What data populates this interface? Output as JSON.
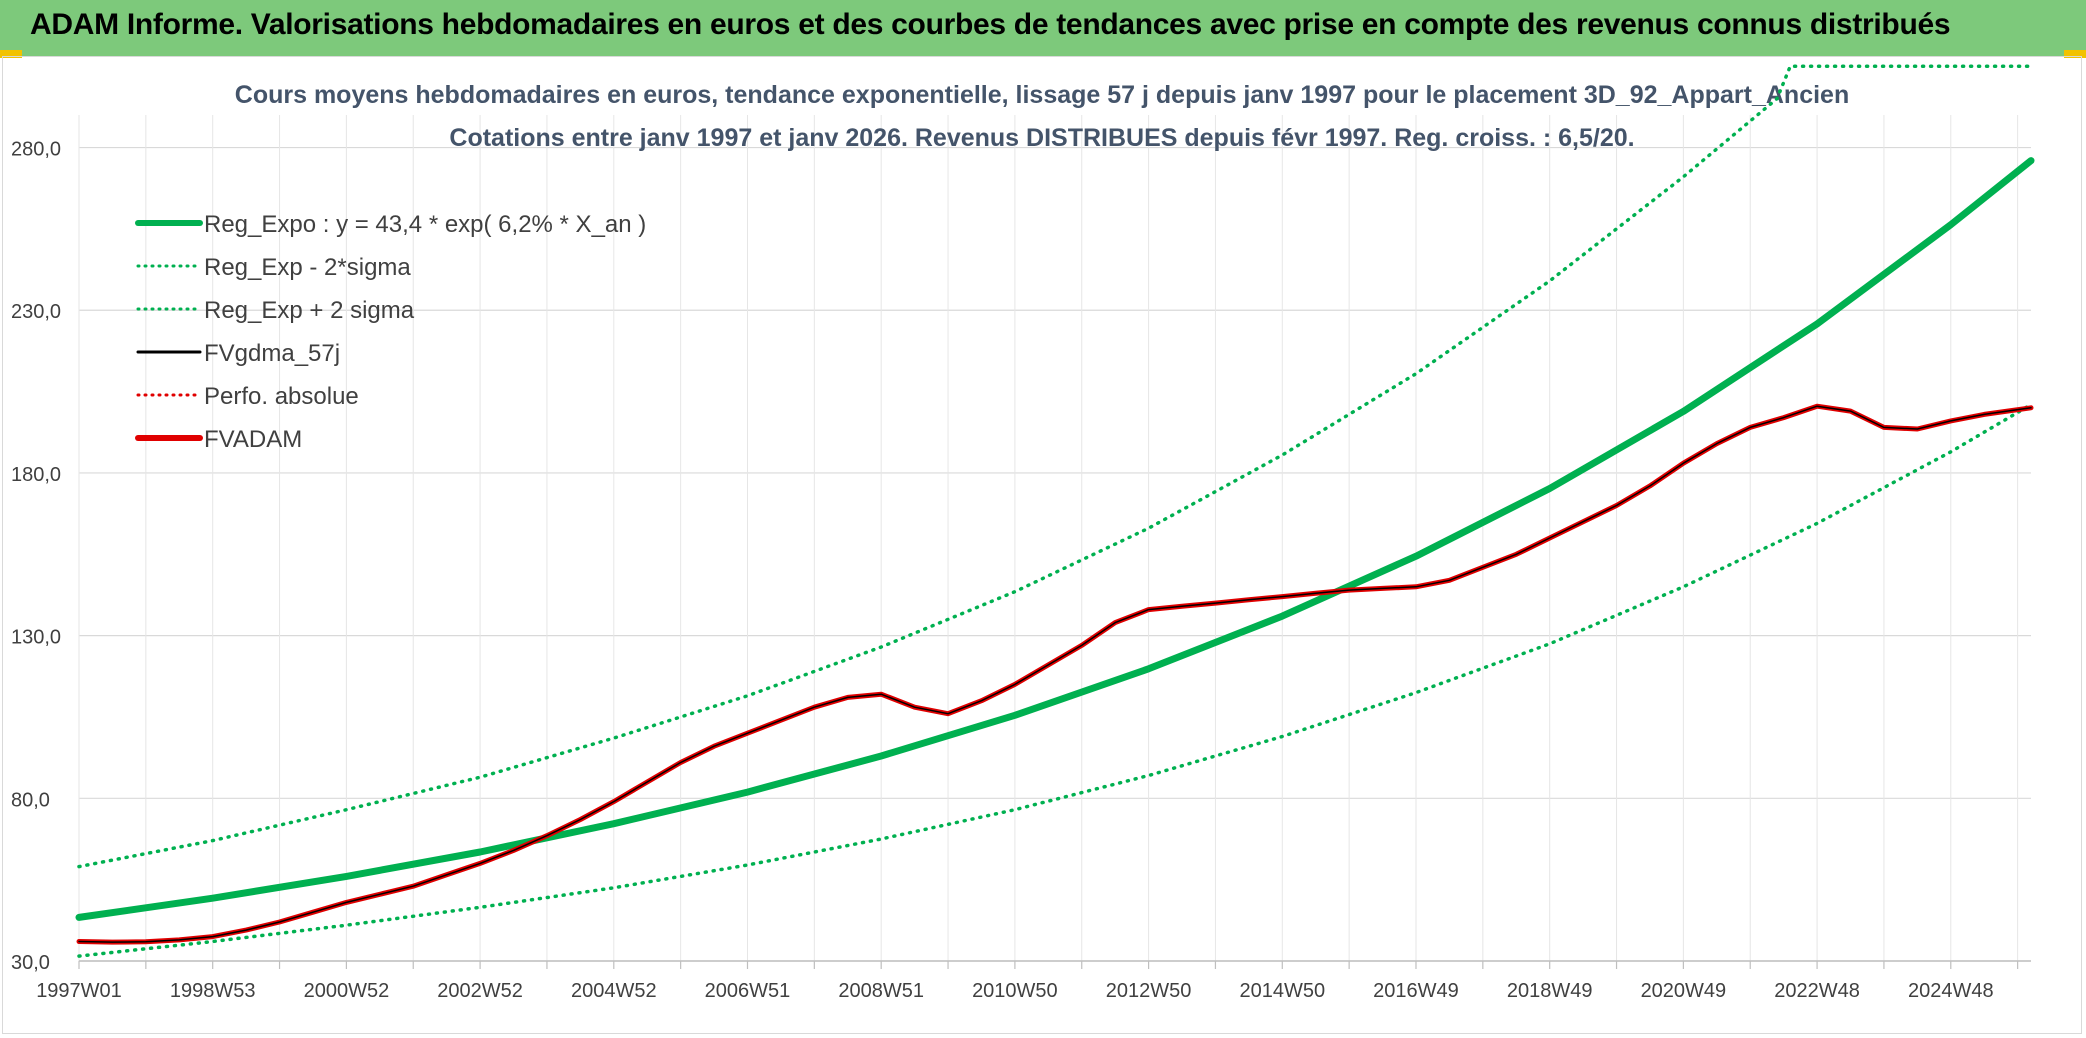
{
  "header": {
    "title": "ADAM Informe. Valorisations hebdomadaires en euros et des courbes de tendances avec prise en compte des revenus connus distribués"
  },
  "colors": {
    "header_bg": "#7dc97b",
    "corner_accent": "#f2c200",
    "green": "#00b050",
    "red": "#e00000",
    "black": "#000000",
    "grid": "#d9d9d9",
    "text": "#404040",
    "title_text": "#44546a"
  },
  "chart_data": {
    "type": "line",
    "title": "Cours moyens hebdomadaires en euros, tendance exponentielle, lissage 57 j depuis janv 1997 pour le placement 3D_92_Appart_Ancien",
    "subtitle": "Cotations entre janv 1997 et janv 2026. Revenus DISTRIBUES depuis févr 1997. Reg. croiss. : 6,5/20.",
    "x_range": [
      1997.0,
      2026.2
    ],
    "ylim": [
      30,
      290
    ],
    "y_ticks": [
      30,
      80,
      130,
      180,
      230,
      280
    ],
    "y_tick_labels": [
      "30,0",
      "80,0",
      "130,0",
      "180,0",
      "230,0",
      "280,0"
    ],
    "x_ticks": [
      1997.0,
      1999.0,
      2001.0,
      2003.0,
      2005.0,
      2007.0,
      2009.0,
      2011.0,
      2013.0,
      2015.0,
      2017.0,
      2019.0,
      2021.0,
      2023.0,
      2025.0
    ],
    "x_tick_labels": [
      "1997W01",
      "1998W53",
      "2000W52",
      "2002W52",
      "2004W52",
      "2006W51",
      "2008W51",
      "2010W50",
      "2012W50",
      "2014W50",
      "2016W49",
      "2018W49",
      "2020W49",
      "2022W48",
      "2024W48"
    ],
    "grid": true,
    "legend_placement": "top-left",
    "series": [
      {
        "name": "Reg_Expo : y = 43,4 * exp( 6,2% *  X_an )",
        "style": "solid-thick",
        "color": "#00b050",
        "x": [
          1997.0,
          1999.0,
          2001.0,
          2003.0,
          2005.0,
          2007.0,
          2009.0,
          2011.0,
          2013.0,
          2015.0,
          2017.0,
          2019.0,
          2021.0,
          2023.0,
          2025.0,
          2026.2
        ],
        "values": [
          43.4,
          49.3,
          56.0,
          63.5,
          72.2,
          81.9,
          93.0,
          105.5,
          119.8,
          136.0,
          154.4,
          175.2,
          198.9,
          225.8,
          256.3,
          276.0
        ]
      },
      {
        "name": "Reg_Exp - 2*sigma",
        "style": "dotted",
        "color": "#00b050",
        "x": [
          1997.0,
          1999.0,
          2001.0,
          2003.0,
          2005.0,
          2007.0,
          2009.0,
          2011.0,
          2013.0,
          2015.0,
          2017.0,
          2019.0,
          2021.0,
          2023.0,
          2025.0,
          2026.2
        ],
        "values": [
          31.5,
          36.0,
          41.0,
          46.5,
          52.5,
          59.5,
          67.5,
          76.5,
          87.0,
          99.0,
          112.5,
          127.5,
          145.0,
          164.5,
          186.5,
          201.0
        ]
      },
      {
        "name": "Reg_Exp + 2 sigma",
        "style": "dotted",
        "color": "#00b050",
        "x": [
          1997.0,
          1999.0,
          2001.0,
          2003.0,
          2005.0,
          2007.0,
          2009.0,
          2011.0,
          2013.0,
          2015.0,
          2017.0,
          2019.0,
          2021.0,
          2022.4,
          2022.6,
          2026.2
        ],
        "values": [
          59.0,
          67.0,
          76.5,
          86.5,
          98.5,
          111.5,
          126.5,
          143.5,
          163.0,
          185.5,
          210.5,
          239.0,
          271.0,
          295.0,
          305.0,
          305.0
        ]
      },
      {
        "name": "FVgdma_57j",
        "style": "solid",
        "color": "#000000",
        "x": [
          1997.0,
          1997.5,
          1998.0,
          1998.5,
          1999.0,
          1999.5,
          2000.0,
          2000.5,
          2001.0,
          2001.5,
          2002.0,
          2002.5,
          2003.0,
          2003.5,
          2004.0,
          2004.5,
          2005.0,
          2005.5,
          2006.0,
          2006.5,
          2007.0,
          2007.5,
          2008.0,
          2008.5,
          2009.0,
          2009.5,
          2010.0,
          2010.5,
          2011.0,
          2011.5,
          2012.0,
          2012.5,
          2013.0,
          2013.5,
          2014.0,
          2014.5,
          2015.0,
          2015.5,
          2016.0,
          2016.5,
          2017.0,
          2017.5,
          2018.0,
          2018.5,
          2019.0,
          2019.5,
          2020.0,
          2020.5,
          2021.0,
          2021.5,
          2022.0,
          2022.5,
          2023.0,
          2023.5,
          2024.0,
          2024.5,
          2025.0,
          2025.5,
          2026.2
        ],
        "values": [
          36.0,
          35.8,
          35.9,
          36.5,
          37.5,
          39.5,
          42.0,
          45.0,
          48.0,
          50.5,
          53.0,
          56.5,
          60.0,
          64.0,
          68.5,
          73.5,
          79.0,
          85.0,
          91.0,
          96.0,
          100.0,
          104.0,
          108.0,
          111.0,
          112.0,
          108.0,
          106.0,
          110.0,
          115.0,
          121.0,
          127.0,
          134.0,
          138.0,
          139.0,
          140.0,
          141.0,
          142.0,
          143.0,
          144.0,
          144.5,
          145.0,
          147.0,
          151.0,
          155.0,
          160.0,
          165.0,
          170.0,
          176.0,
          183.0,
          189.0,
          194.0,
          197.0,
          200.5,
          199.0,
          194.0,
          193.5,
          196.0,
          198.0,
          200.0
        ]
      },
      {
        "name": "Perfo. absolue",
        "style": "dotted",
        "color": "#e00000",
        "x": [],
        "values": []
      },
      {
        "name": "FVADAM",
        "style": "solid-thick",
        "color": "#e00000",
        "x": [
          1997.0,
          1997.5,
          1998.0,
          1998.5,
          1999.0,
          1999.5,
          2000.0,
          2000.5,
          2001.0,
          2001.5,
          2002.0,
          2002.5,
          2003.0,
          2003.5,
          2004.0,
          2004.5,
          2005.0,
          2005.5,
          2006.0,
          2006.5,
          2007.0,
          2007.5,
          2008.0,
          2008.5,
          2009.0,
          2009.5,
          2010.0,
          2010.5,
          2011.0,
          2011.5,
          2012.0,
          2012.5,
          2013.0,
          2013.5,
          2014.0,
          2014.5,
          2015.0,
          2015.5,
          2016.0,
          2016.5,
          2017.0,
          2017.5,
          2018.0,
          2018.5,
          2019.0,
          2019.5,
          2020.0,
          2020.5,
          2021.0,
          2021.5,
          2022.0,
          2022.5,
          2023.0,
          2023.5,
          2024.0,
          2024.5,
          2025.0,
          2025.5,
          2026.2
        ],
        "values": [
          36.0,
          35.8,
          35.9,
          36.5,
          37.5,
          39.5,
          42.0,
          45.0,
          48.0,
          50.5,
          53.0,
          56.5,
          60.0,
          64.0,
          68.5,
          73.5,
          79.0,
          85.0,
          91.0,
          96.0,
          100.0,
          104.0,
          108.0,
          111.0,
          112.0,
          108.0,
          106.0,
          110.0,
          115.0,
          121.0,
          127.0,
          134.0,
          138.0,
          139.0,
          140.0,
          141.0,
          142.0,
          143.0,
          144.0,
          144.5,
          145.0,
          147.0,
          151.0,
          155.0,
          160.0,
          165.0,
          170.0,
          176.0,
          183.0,
          189.0,
          194.0,
          197.0,
          200.5,
          199.0,
          194.0,
          193.5,
          196.0,
          198.0,
          200.0
        ]
      }
    ]
  }
}
